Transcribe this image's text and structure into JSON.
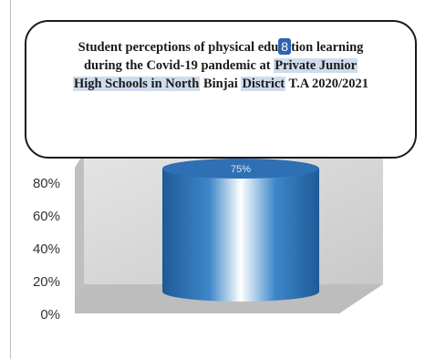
{
  "chart_data": {
    "type": "bar",
    "title_parts": [
      {
        "text": "Student perceptions of physical edu",
        "style": "plain"
      },
      {
        "text": "8",
        "style": "badge"
      },
      {
        "text": "tion learning",
        "style": "plain"
      },
      {
        "text": "during the Covid-19 pandemic at ",
        "style": "plain",
        "break_before": true
      },
      {
        "text": "Private Junior",
        "style": "highlight"
      },
      {
        "text": "High Schools in North",
        "style": "highlight",
        "break_before": true
      },
      {
        "text": " Binjai ",
        "style": "plain"
      },
      {
        "text": "District",
        "style": "highlight"
      },
      {
        "text": " T.A 2020/2021",
        "style": "plain"
      }
    ],
    "y_ticks": [
      "0%",
      "20%",
      "40%",
      "60%",
      "80%"
    ],
    "ylim": [
      0,
      80
    ],
    "categories": [
      ""
    ],
    "values": [
      75
    ],
    "data_labels": [
      "75%"
    ],
    "colors": {
      "bar_dark": "#1f5a98",
      "bar_mid": "#3d87c9",
      "bar_light": "#ffffff",
      "bar_top": "#2f6fb4",
      "wall": "#d7d7d7",
      "floor": "#bdbdbd"
    }
  }
}
